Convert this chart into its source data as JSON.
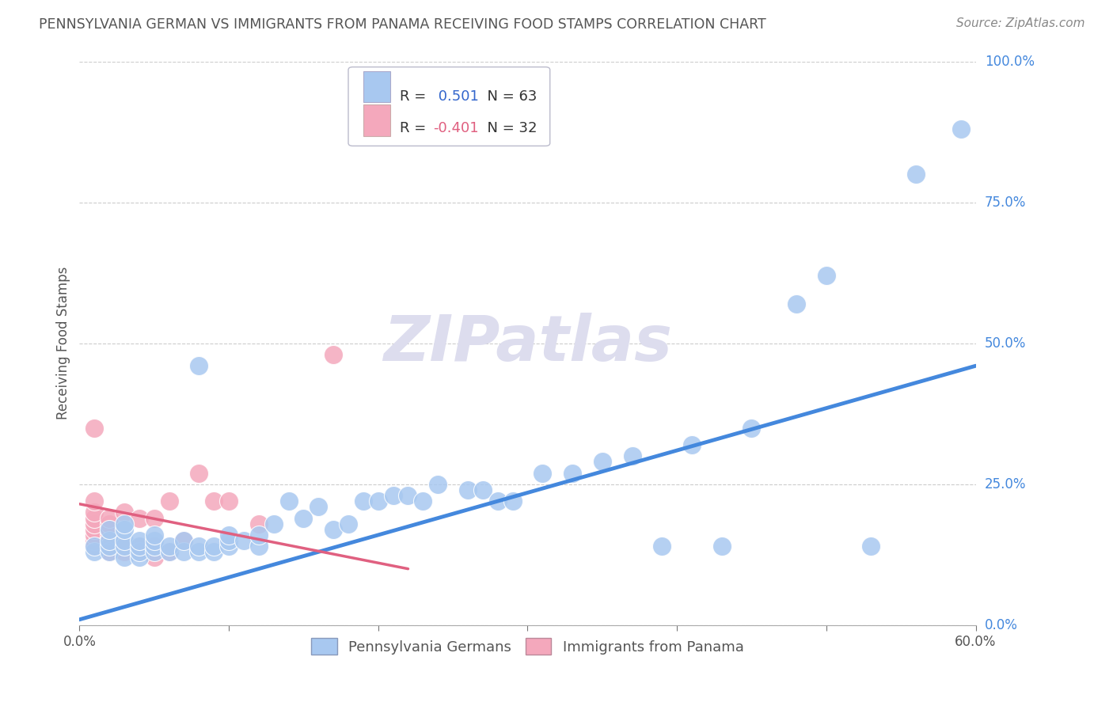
{
  "title": "PENNSYLVANIA GERMAN VS IMMIGRANTS FROM PANAMA RECEIVING FOOD STAMPS CORRELATION CHART",
  "source": "Source: ZipAtlas.com",
  "ylabel": "Receiving Food Stamps",
  "xlim": [
    0.0,
    0.6
  ],
  "ylim": [
    0.0,
    1.0
  ],
  "xticks": [
    0.0,
    0.1,
    0.2,
    0.3,
    0.4,
    0.5,
    0.6
  ],
  "ytick_labels_right": [
    "0.0%",
    "25.0%",
    "50.0%",
    "75.0%",
    "100.0%"
  ],
  "ytick_positions_right": [
    0.0,
    0.25,
    0.5,
    0.75,
    1.0
  ],
  "blue_R": 0.501,
  "blue_N": 63,
  "pink_R": -0.401,
  "pink_N": 32,
  "blue_color": "#A8C8F0",
  "pink_color": "#F4A8BC",
  "blue_line_color": "#4488DD",
  "pink_line_color": "#E06080",
  "title_color": "#555555",
  "source_color": "#888888",
  "grid_color": "#CCCCCC",
  "watermark_color": "#DDDDEE",
  "legend_label_color": "#3366CC",
  "blue_scatter_x": [
    0.01,
    0.01,
    0.02,
    0.02,
    0.02,
    0.02,
    0.03,
    0.03,
    0.03,
    0.03,
    0.03,
    0.04,
    0.04,
    0.04,
    0.04,
    0.05,
    0.05,
    0.05,
    0.05,
    0.06,
    0.06,
    0.07,
    0.07,
    0.08,
    0.08,
    0.08,
    0.09,
    0.09,
    0.1,
    0.1,
    0.1,
    0.11,
    0.12,
    0.12,
    0.13,
    0.14,
    0.15,
    0.16,
    0.17,
    0.18,
    0.19,
    0.2,
    0.21,
    0.22,
    0.23,
    0.24,
    0.26,
    0.27,
    0.28,
    0.29,
    0.31,
    0.33,
    0.35,
    0.37,
    0.39,
    0.41,
    0.43,
    0.45,
    0.48,
    0.5,
    0.53,
    0.56,
    0.59
  ],
  "blue_scatter_y": [
    0.13,
    0.14,
    0.13,
    0.14,
    0.15,
    0.17,
    0.12,
    0.14,
    0.15,
    0.17,
    0.18,
    0.12,
    0.13,
    0.14,
    0.15,
    0.13,
    0.14,
    0.15,
    0.16,
    0.13,
    0.14,
    0.13,
    0.15,
    0.13,
    0.14,
    0.46,
    0.13,
    0.14,
    0.14,
    0.15,
    0.16,
    0.15,
    0.14,
    0.16,
    0.18,
    0.22,
    0.19,
    0.21,
    0.17,
    0.18,
    0.22,
    0.22,
    0.23,
    0.23,
    0.22,
    0.25,
    0.24,
    0.24,
    0.22,
    0.22,
    0.27,
    0.27,
    0.29,
    0.3,
    0.14,
    0.32,
    0.14,
    0.35,
    0.57,
    0.62,
    0.14,
    0.8,
    0.88
  ],
  "pink_scatter_x": [
    0.01,
    0.01,
    0.01,
    0.01,
    0.01,
    0.01,
    0.01,
    0.01,
    0.01,
    0.02,
    0.02,
    0.02,
    0.02,
    0.02,
    0.02,
    0.03,
    0.03,
    0.03,
    0.04,
    0.04,
    0.04,
    0.05,
    0.05,
    0.05,
    0.06,
    0.06,
    0.07,
    0.08,
    0.09,
    0.1,
    0.12,
    0.17
  ],
  "pink_scatter_y": [
    0.14,
    0.15,
    0.16,
    0.17,
    0.18,
    0.19,
    0.2,
    0.22,
    0.35,
    0.13,
    0.15,
    0.16,
    0.17,
    0.18,
    0.19,
    0.13,
    0.14,
    0.2,
    0.13,
    0.14,
    0.19,
    0.12,
    0.14,
    0.19,
    0.13,
    0.22,
    0.15,
    0.27,
    0.22,
    0.22,
    0.18,
    0.48
  ],
  "blue_trend_x": [
    0.0,
    0.6
  ],
  "blue_trend_y": [
    0.01,
    0.46
  ],
  "pink_trend_x": [
    0.0,
    0.22
  ],
  "pink_trend_y": [
    0.215,
    0.1
  ]
}
